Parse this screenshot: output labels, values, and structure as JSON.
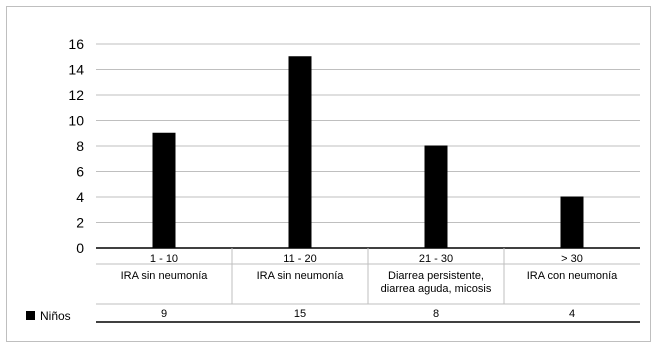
{
  "chart_data": {
    "type": "bar",
    "categories": [
      "1 - 10",
      "11 - 20",
      "21 - 30",
      "> 30"
    ],
    "category_sublabels": [
      [
        "IRA sin neumonía"
      ],
      [
        "IRA sin neumonía"
      ],
      [
        "Diarrea persistente,",
        "diarrea aguda, micosis"
      ],
      [
        "IRA con neumonía"
      ]
    ],
    "series": [
      {
        "name": "Niños",
        "values": [
          9,
          15,
          8,
          4
        ],
        "color": "#000000"
      }
    ],
    "ylim": [
      0,
      16
    ],
    "yticks": [
      0,
      2,
      4,
      6,
      8,
      10,
      12,
      14,
      16
    ],
    "grid": true,
    "legend_position": "bottom-left",
    "data_table": true
  }
}
